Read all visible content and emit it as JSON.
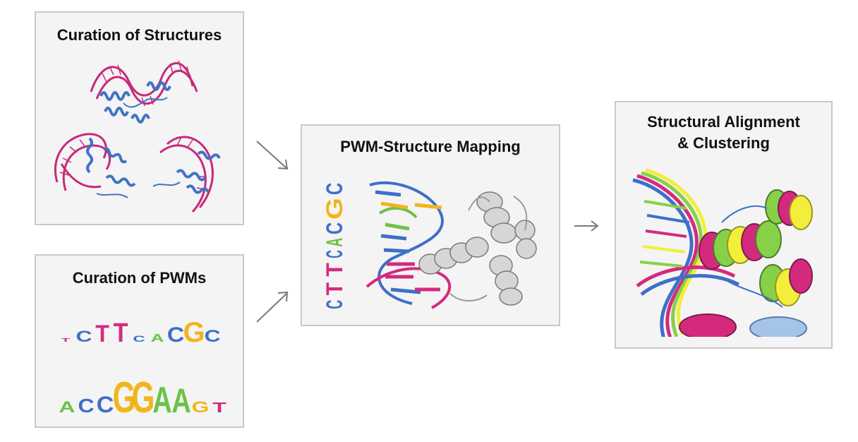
{
  "panels": {
    "structures": {
      "title": "Curation of Structures"
    },
    "pwms": {
      "title": "Curation of PWMs",
      "logo_1": [
        "T",
        "C",
        "T",
        "T",
        "C",
        "A",
        "C",
        "G",
        "C"
      ],
      "logo_2": [
        "A",
        "C",
        "C",
        "G",
        "G",
        "A",
        "A",
        "G",
        "T"
      ]
    },
    "mapping": {
      "title": "PWM-Structure Mapping",
      "vertical_logo": [
        "C",
        "T",
        "T",
        "C",
        "A",
        "C",
        "G",
        "C"
      ]
    },
    "alignment": {
      "title_line1": "Structural Alignment",
      "title_line2": "& Clustering"
    }
  },
  "colors": {
    "dna": "#c8287a",
    "protein": "#3f74c4",
    "base_A": "#6cc24a",
    "base_C": "#3e6fc9",
    "base_G": "#f1b51c",
    "base_T": "#d42a7e",
    "grey_protein": "#d6d6d6",
    "yellow_protein": "#f2ee3a",
    "green_protein": "#86d148"
  }
}
